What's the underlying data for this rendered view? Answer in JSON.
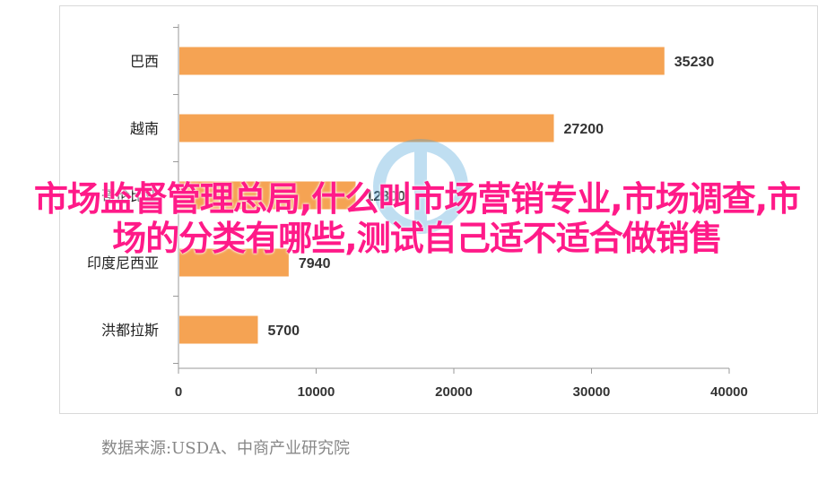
{
  "chart_data": {
    "type": "bar",
    "orientation": "horizontal",
    "categories": [
      "巴西",
      "越南",
      "哥伦比亚",
      "印度尼西亚",
      "洪都拉斯"
    ],
    "values": [
      35230,
      27200,
      12800,
      7940,
      5700
    ],
    "data_labels": [
      "35230",
      "27200",
      "12800",
      "7940",
      "5700"
    ],
    "xlim": [
      0,
      40000
    ],
    "xticks": [
      "0",
      "10000",
      "20000",
      "30000",
      "40000"
    ],
    "bar_color": "#f5a353",
    "grid": false
  },
  "overlay_text": "市场监督管理总局,什么叫市场营销专业,市场调查,市场的分类有哪些,测试自己适不适合做销售",
  "source": "数据来源:USDA、中商产业研究院",
  "colors": {
    "overlay": "#ff1a88",
    "bar": "#f5a353"
  }
}
